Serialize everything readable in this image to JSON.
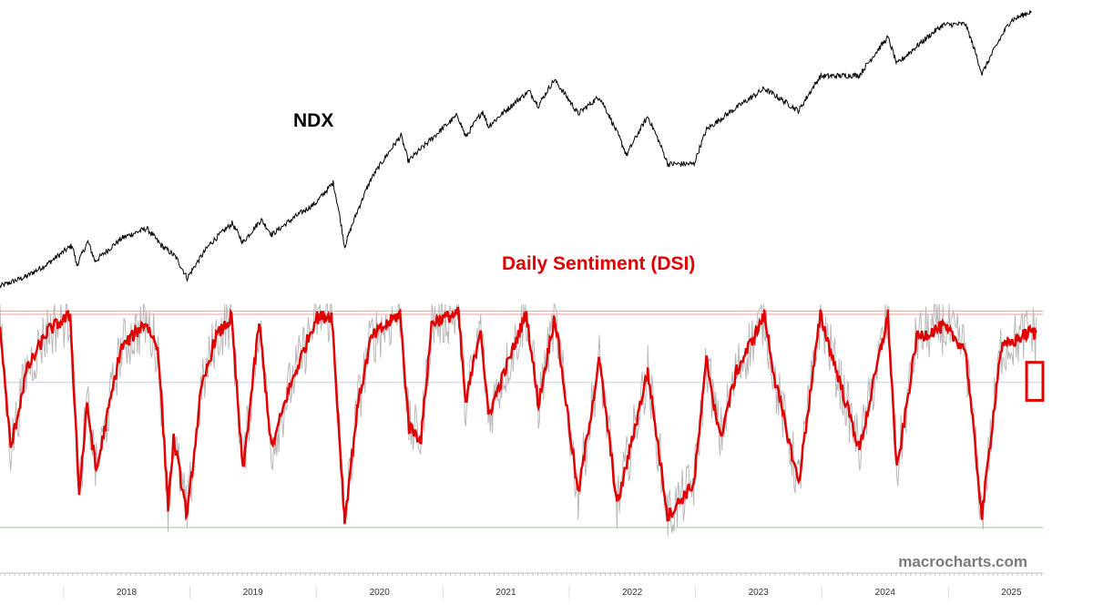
{
  "chart_data": {
    "type": "line",
    "x_axis": {
      "tick_labels": [
        "2018",
        "2019",
        "2020",
        "2021",
        "2022",
        "2023",
        "2024",
        "2025"
      ],
      "range": [
        "2017-07-01",
        "2025-10-01"
      ]
    },
    "series": [
      {
        "name": "NDX",
        "color": "#000000",
        "points": [
          [
            "2017-07-01",
            5650
          ],
          [
            "2017-09-15",
            5950
          ],
          [
            "2017-11-15",
            6350
          ],
          [
            "2018-01-26",
            7000
          ],
          [
            "2018-02-08",
            6300
          ],
          [
            "2018-03-12",
            7130
          ],
          [
            "2018-04-02",
            6440
          ],
          [
            "2018-06-20",
            7280
          ],
          [
            "2018-08-29",
            7650
          ],
          [
            "2018-10-10",
            7000
          ],
          [
            "2018-11-20",
            6600
          ],
          [
            "2018-12-24",
            5900
          ],
          [
            "2019-02-28",
            7050
          ],
          [
            "2019-05-03",
            7850
          ],
          [
            "2019-06-03",
            7100
          ],
          [
            "2019-07-26",
            8000
          ],
          [
            "2019-08-26",
            7400
          ],
          [
            "2019-10-30",
            8100
          ],
          [
            "2019-12-31",
            8730
          ],
          [
            "2020-02-19",
            9700
          ],
          [
            "2020-03-23",
            6950
          ],
          [
            "2020-06-08",
            9900
          ],
          [
            "2020-09-02",
            12400
          ],
          [
            "2020-09-23",
            10850
          ],
          [
            "2020-11-20",
            12000
          ],
          [
            "2021-02-12",
            13800
          ],
          [
            "2021-03-08",
            12300
          ],
          [
            "2021-04-26",
            14100
          ],
          [
            "2021-05-12",
            13000
          ],
          [
            "2021-09-07",
            15650
          ],
          [
            "2021-10-04",
            14500
          ],
          [
            "2021-11-19",
            16600
          ],
          [
            "2022-01-27",
            13900
          ],
          [
            "2022-03-29",
            15200
          ],
          [
            "2022-06-16",
            11200
          ],
          [
            "2022-08-16",
            13700
          ],
          [
            "2022-10-13",
            10700
          ],
          [
            "2022-12-28",
            10700
          ],
          [
            "2023-02-02",
            12800
          ],
          [
            "2023-06-15",
            15200
          ],
          [
            "2023-07-19",
            15850
          ],
          [
            "2023-10-26",
            14100
          ],
          [
            "2023-12-28",
            16900
          ],
          [
            "2024-04-19",
            17000
          ],
          [
            "2024-07-10",
            20700
          ],
          [
            "2024-08-05",
            18000
          ],
          [
            "2024-12-16",
            22100
          ],
          [
            "2025-02-19",
            22200
          ],
          [
            "2025-04-08",
            17100
          ],
          [
            "2025-06-30",
            22600
          ],
          [
            "2025-08-28",
            23700
          ]
        ]
      },
      {
        "name": "Daily Sentiment (DSI)",
        "color": "#e00000",
        "points": [
          [
            "2017-07-01",
            90
          ],
          [
            "2017-08-01",
            35
          ],
          [
            "2017-09-15",
            70
          ],
          [
            "2017-11-15",
            88
          ],
          [
            "2018-01-20",
            95
          ],
          [
            "2018-02-15",
            15
          ],
          [
            "2018-03-10",
            55
          ],
          [
            "2018-04-05",
            25
          ],
          [
            "2018-06-15",
            80
          ],
          [
            "2018-08-25",
            92
          ],
          [
            "2018-10-01",
            80
          ],
          [
            "2018-10-30",
            10
          ],
          [
            "2018-11-15",
            40
          ],
          [
            "2018-12-24",
            5
          ],
          [
            "2019-02-01",
            60
          ],
          [
            "2019-03-15",
            85
          ],
          [
            "2019-05-01",
            94
          ],
          [
            "2019-06-03",
            25
          ],
          [
            "2019-07-20",
            92
          ],
          [
            "2019-08-25",
            35
          ],
          [
            "2019-10-10",
            60
          ],
          [
            "2019-12-31",
            94
          ],
          [
            "2020-02-15",
            95
          ],
          [
            "2020-03-23",
            3
          ],
          [
            "2020-04-30",
            55
          ],
          [
            "2020-06-08",
            85
          ],
          [
            "2020-08-30",
            96
          ],
          [
            "2020-09-25",
            45
          ],
          [
            "2020-10-30",
            40
          ],
          [
            "2020-11-30",
            92
          ],
          [
            "2021-02-15",
            96
          ],
          [
            "2021-03-08",
            55
          ],
          [
            "2021-04-20",
            90
          ],
          [
            "2021-05-12",
            50
          ],
          [
            "2021-08-30",
            96
          ],
          [
            "2021-10-04",
            55
          ],
          [
            "2021-11-20",
            95
          ],
          [
            "2022-01-27",
            15
          ],
          [
            "2022-03-29",
            75
          ],
          [
            "2022-05-20",
            10
          ],
          [
            "2022-08-16",
            70
          ],
          [
            "2022-10-13",
            5
          ],
          [
            "2022-12-28",
            20
          ],
          [
            "2023-02-02",
            75
          ],
          [
            "2023-03-13",
            40
          ],
          [
            "2023-04-30",
            70
          ],
          [
            "2023-07-19",
            95
          ],
          [
            "2023-08-20",
            65
          ],
          [
            "2023-10-26",
            20
          ],
          [
            "2023-12-28",
            95
          ],
          [
            "2024-04-19",
            35
          ],
          [
            "2024-07-10",
            95
          ],
          [
            "2024-08-05",
            25
          ],
          [
            "2024-10-01",
            85
          ],
          [
            "2024-12-16",
            90
          ],
          [
            "2025-02-19",
            80
          ],
          [
            "2025-04-08",
            5
          ],
          [
            "2025-06-01",
            80
          ],
          [
            "2025-08-28",
            88
          ],
          [
            "2025-09-12",
            86
          ]
        ]
      }
    ],
    "series_labels_printed": [
      "NDX",
      "Daily Sentiment (DSI)"
    ],
    "reference_lines": [
      {
        "kind": "dsi",
        "value": 97,
        "color": "#ff9999"
      },
      {
        "kind": "dsi",
        "value": 95.5,
        "color": "#ff9999"
      },
      {
        "kind": "dsi",
        "value": 65,
        "color": "#c8c8e8"
      },
      {
        "kind": "dsi",
        "value": 0,
        "color": "#90d090"
      }
    ],
    "highlight": {
      "kind": "box",
      "color": "#e00000",
      "x_from": "2025-08-15",
      "x_to": "2025-10-01",
      "dsi_from": 57,
      "dsi_to": 74
    },
    "grid": false,
    "legend": "none",
    "watermark": "macrocharts.com"
  }
}
